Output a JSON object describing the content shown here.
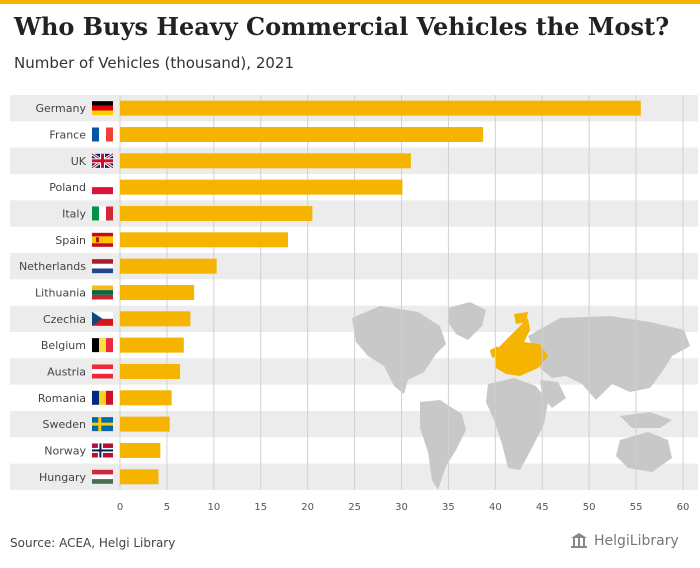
{
  "header": {
    "title": "Who Buys Heavy Commercial Vehicles the Most?",
    "subtitle": "Number of Vehicles (thousand), 2021"
  },
  "chart_data": {
    "type": "bar",
    "orientation": "horizontal",
    "categories": [
      "Germany",
      "France",
      "UK",
      "Poland",
      "Italy",
      "Spain",
      "Netherlands",
      "Lithuania",
      "Czechia",
      "Belgium",
      "Austria",
      "Romania",
      "Sweden",
      "Norway",
      "Hungary"
    ],
    "values": [
      55.5,
      38.7,
      31.0,
      30.1,
      20.5,
      17.9,
      10.3,
      7.9,
      7.5,
      6.8,
      6.4,
      5.5,
      5.3,
      4.3,
      4.1
    ],
    "xlim": [
      0,
      60
    ],
    "xticks": [
      0,
      5,
      10,
      15,
      20,
      25,
      30,
      35,
      40,
      45,
      50,
      55,
      60
    ],
    "bar_color": "#f5b400",
    "grid": true
  },
  "flags": [
    "germany-flag-icon",
    "france-flag-icon",
    "uk-flag-icon",
    "poland-flag-icon",
    "italy-flag-icon",
    "spain-flag-icon",
    "netherlands-flag-icon",
    "lithuania-flag-icon",
    "czechia-flag-icon",
    "belgium-flag-icon",
    "austria-flag-icon",
    "romania-flag-icon",
    "sweden-flag-icon",
    "norway-flag-icon",
    "hungary-flag-icon"
  ],
  "colors": {
    "accent": "#f5b400",
    "band": "#ececec",
    "map": "#c8c8c8"
  },
  "footer": {
    "source": "Source: ACEA, Helgi Library",
    "brand": "HelgiLibrary"
  }
}
